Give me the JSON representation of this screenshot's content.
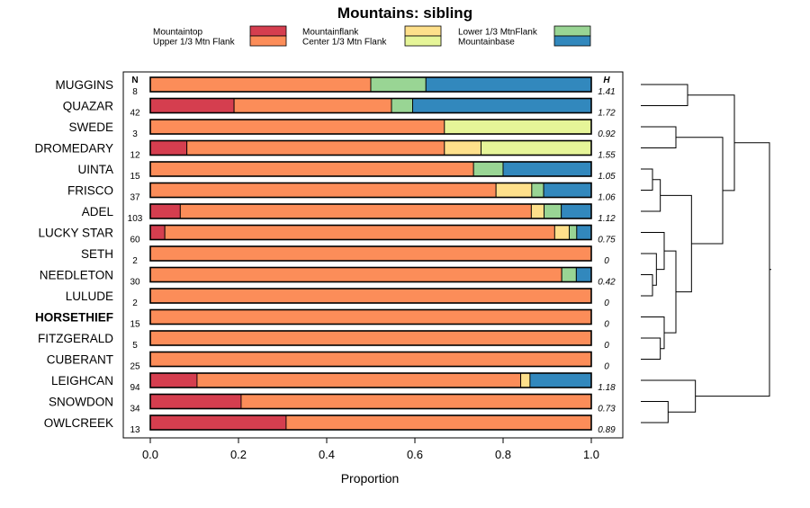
{
  "chart_data": {
    "type": "bar",
    "orientation": "horizontal",
    "stacked": true,
    "title": "Mountains: sibling",
    "xlabel": "Proportion",
    "ylabel": "",
    "xlim": [
      0,
      1
    ],
    "xticks": [
      "0.0",
      "0.2",
      "0.4",
      "0.6",
      "0.8",
      "1.0"
    ],
    "n_header": "N",
    "h_header": "H",
    "legend": [
      {
        "name": "Mountaintop",
        "color": "#d53e4f"
      },
      {
        "name": "Upper 1/3 Mtn Flank",
        "color": "#fc8d59"
      },
      {
        "name": "Mountainflank",
        "color": "#fee08b"
      },
      {
        "name": "Center 1/3 Mtn Flank",
        "color": "#e6f598"
      },
      {
        "name": "Lower 1/3 MtnFlank",
        "color": "#99d594"
      },
      {
        "name": "Mountainbase",
        "color": "#3288bd"
      }
    ],
    "categories": [
      "MUGGINS",
      "QUAZAR",
      "SWEDE",
      "DROMEDARY",
      "UINTA",
      "FRISCO",
      "ADEL",
      "LUCKY STAR",
      "SETH",
      "NEEDLETON",
      "LULUDE",
      "HORSETHIEF",
      "FITZGERALD",
      "CUBERANT",
      "LEIGHCAN",
      "SNOWDON",
      "OWLCREEK"
    ],
    "bold_category": "HORSETHIEF",
    "n": [
      "8",
      "42",
      "3",
      "12",
      "15",
      "37",
      "103",
      "60",
      "2",
      "30",
      "2",
      "15",
      "5",
      "25",
      "94",
      "34",
      "13"
    ],
    "h": [
      "1.41",
      "1.72",
      "0.92",
      "1.55",
      "1.05",
      "1.06",
      "1.12",
      "0.75",
      "0",
      "0.42",
      "0",
      "0",
      "0",
      "0",
      "1.18",
      "0.73",
      "0.89"
    ],
    "series": [
      {
        "name": "Mountaintop",
        "values": [
          0,
          0.19,
          0,
          0.083,
          0,
          0,
          0.068,
          0.033,
          0,
          0,
          0,
          0,
          0,
          0,
          0.106,
          0.206,
          0.308
        ]
      },
      {
        "name": "Upper 1/3 Mtn Flank",
        "values": [
          0.5,
          0.357,
          0.667,
          0.584,
          0.733,
          0.784,
          0.796,
          0.884,
          1,
          0.933,
          1,
          1,
          1,
          1,
          0.734,
          0.794,
          0.692
        ]
      },
      {
        "name": "Mountainflank",
        "values": [
          0,
          0,
          0,
          0.083,
          0,
          0.081,
          0.029,
          0.033,
          0,
          0,
          0,
          0,
          0,
          0,
          0.021,
          0,
          0
        ]
      },
      {
        "name": "Center 1/3 Mtn Flank",
        "values": [
          0,
          0,
          0.333,
          0.25,
          0,
          0,
          0,
          0,
          0,
          0,
          0,
          0,
          0,
          0,
          0,
          0,
          0
        ]
      },
      {
        "name": "Lower 1/3 MtnFlank",
        "values": [
          0.125,
          0.048,
          0,
          0,
          0.067,
          0.027,
          0.039,
          0.017,
          0,
          0.033,
          0,
          0,
          0,
          0,
          0,
          0,
          0
        ]
      },
      {
        "name": "Mountainbase",
        "values": [
          0.375,
          0.405,
          0,
          0,
          0.2,
          0.108,
          0.068,
          0.033,
          0,
          0.034,
          0,
          0,
          0,
          0,
          0.139,
          0,
          0
        ]
      }
    ],
    "dendrogram": {
      "description": "hierarchical clustering of rows, leaves in row order (0-based)",
      "merges": [
        {
          "id": "a",
          "left": 0,
          "right": 1,
          "height": 0.12
        },
        {
          "id": "b",
          "left": 2,
          "right": 3,
          "height": 0.09
        },
        {
          "id": "c",
          "left": 4,
          "right": 5,
          "height": 0.03
        },
        {
          "id": "d",
          "left": "c",
          "right": 6,
          "height": 0.05
        },
        {
          "id": "e",
          "left": 9,
          "right": 10,
          "height": 0.03
        },
        {
          "id": "f",
          "left": 8,
          "right": "e",
          "height": 0.04
        },
        {
          "id": "g",
          "left": 7,
          "right": "f",
          "height": 0.06
        },
        {
          "id": "h",
          "left": 12,
          "right": 13,
          "height": 0.05
        },
        {
          "id": "i",
          "left": 11,
          "right": "h",
          "height": 0.06
        },
        {
          "id": "j",
          "left": "g",
          "right": "i",
          "height": 0.09
        },
        {
          "id": "k",
          "left": "d",
          "right": "j",
          "height": 0.13
        },
        {
          "id": "l",
          "left": "b",
          "right": "k",
          "height": 0.21
        },
        {
          "id": "m",
          "left": 15,
          "right": 16,
          "height": 0.07
        },
        {
          "id": "n",
          "left": 14,
          "right": "m",
          "height": 0.14
        },
        {
          "id": "o",
          "left": "a",
          "right": "l",
          "height": 0.24
        },
        {
          "id": "p",
          "left": "o",
          "right": "n",
          "height": 0.33
        }
      ]
    }
  }
}
